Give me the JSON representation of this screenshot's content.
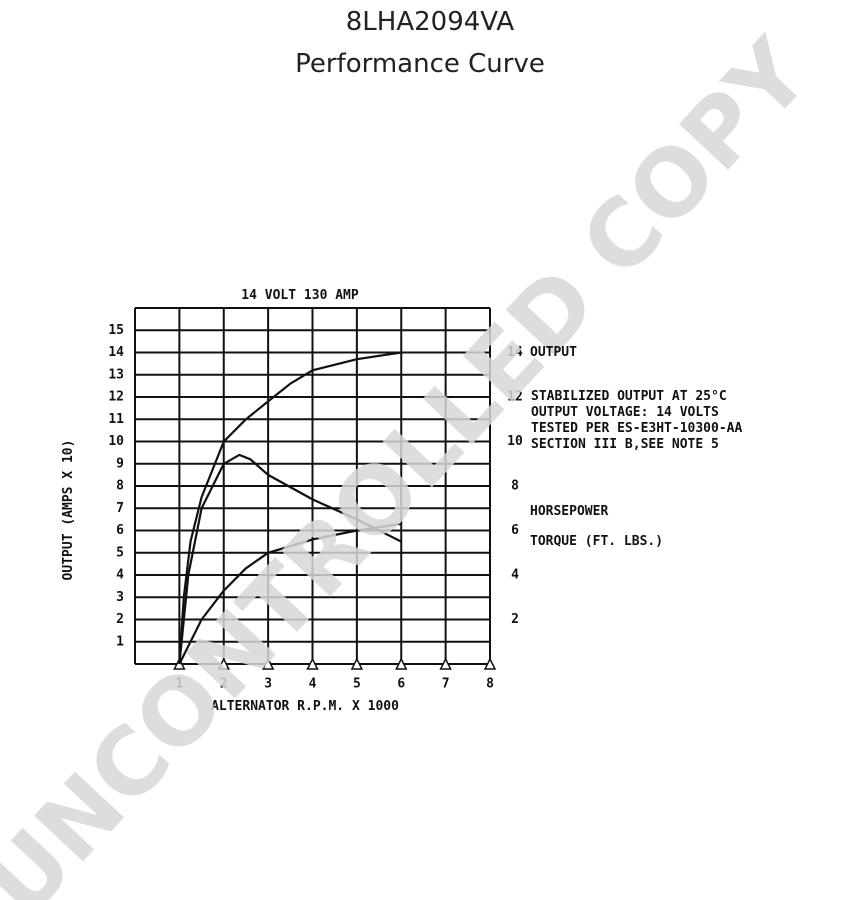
{
  "chart_data": {
    "type": "line",
    "title": "8LHA2094VA",
    "subtitle": "Performance Curve",
    "chart_label": "14 VOLT 130 AMP",
    "x_label": "ALTERNATOR R.P.M. X 1000",
    "y_label": "OUTPUT (AMPS X 10)",
    "notes": [
      "STABILIZED OUTPUT AT 25°C",
      "OUTPUT VOLTAGE: 14 VOLTS",
      "TESTED PER ES-E3HT-10300-AA",
      "SECTION III B,SEE NOTE 5"
    ],
    "watermark": "UNCONTROLLED COPY",
    "xlim": [
      0,
      8
    ],
    "xticks": [
      1,
      2,
      3,
      4,
      5,
      6,
      7,
      8
    ],
    "ylim": [
      0,
      16
    ],
    "yticks": [
      1,
      2,
      3,
      4,
      5,
      6,
      7,
      8,
      9,
      10,
      11,
      12,
      13,
      14,
      15
    ],
    "y2lim": [
      0,
      16
    ],
    "y2ticks": [
      2,
      4,
      6,
      8,
      10,
      12,
      14
    ],
    "grid": true,
    "series": [
      {
        "name": "OUTPUT",
        "color": "#111111",
        "x": [
          1,
          1.1,
          1.25,
          1.5,
          2,
          2.5,
          3,
          3.5,
          4,
          5,
          6
        ],
        "values": [
          0,
          3,
          5.5,
          7.5,
          10,
          11,
          11.8,
          12.6,
          13.2,
          13.7,
          14
        ]
      },
      {
        "name": "HORSEPOWER",
        "color": "#111111",
        "axis": "y2",
        "x": [
          1,
          1.5,
          2,
          2.5,
          3,
          4,
          5,
          6
        ],
        "values": [
          0,
          2,
          3.3,
          4.3,
          5,
          5.6,
          6,
          6.3
        ]
      },
      {
        "name": "TORQUE (FT. LBS.)",
        "color": "#111111",
        "axis": "y2",
        "x": [
          1,
          1.2,
          1.5,
          2,
          2.35,
          2.6,
          3,
          4,
          5,
          6
        ],
        "values": [
          0,
          4,
          7,
          9,
          9.4,
          9.2,
          8.5,
          7.4,
          6.5,
          5.5
        ]
      }
    ]
  }
}
